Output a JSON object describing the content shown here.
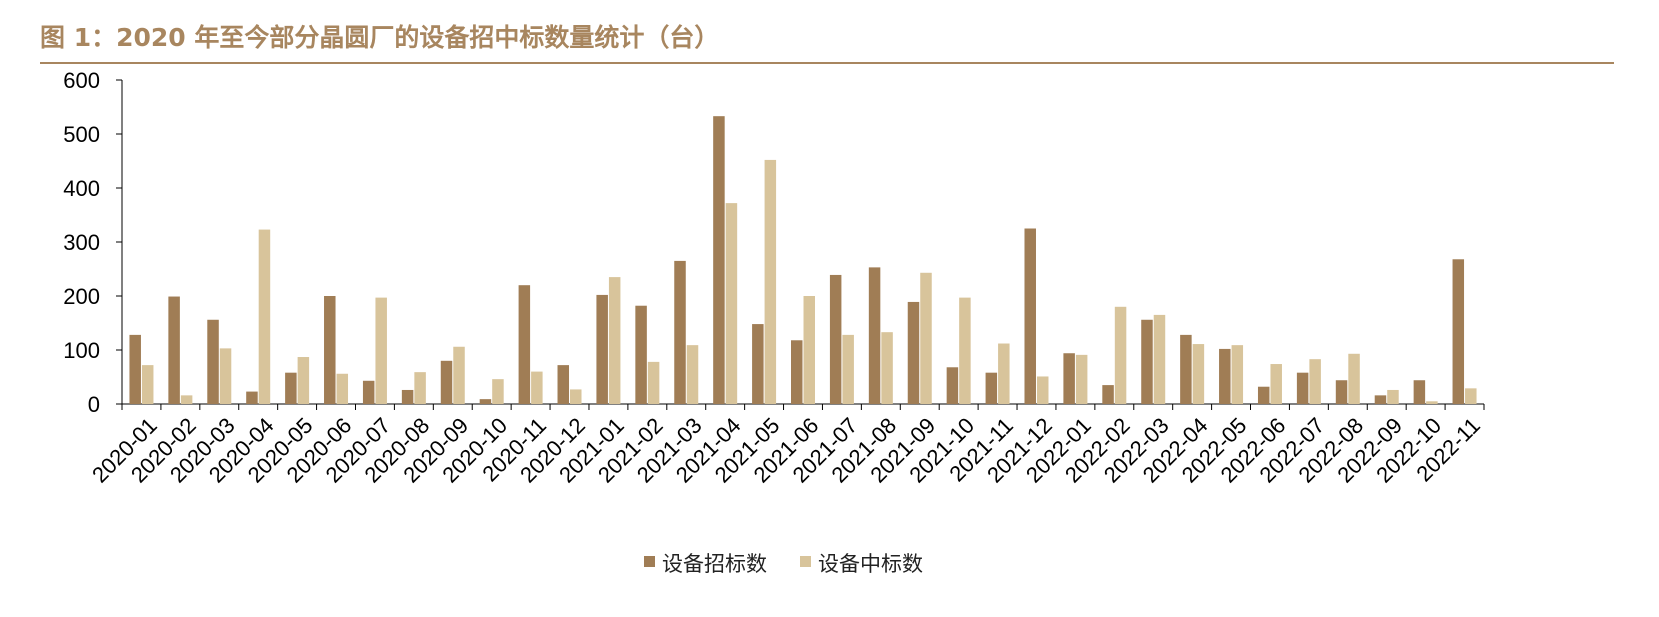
{
  "header": {
    "title": "图 1：2020 年至今部分晶圆厂的设备招中标数量统计（台）"
  },
  "colors": {
    "title": "#a8865f",
    "rule": "#a8865f",
    "series_bid": "#a07d55",
    "series_win": "#d8c49b",
    "axis": "#000000"
  },
  "chart_data": {
    "type": "bar",
    "title": "",
    "xlabel": "",
    "ylabel": "",
    "ylim": [
      0,
      600
    ],
    "yticks": [
      0,
      100,
      200,
      300,
      400,
      500,
      600
    ],
    "grid": false,
    "legend_position": "bottom-center",
    "categories": [
      "2020-01",
      "2020-02",
      "2020-03",
      "2020-04",
      "2020-05",
      "2020-06",
      "2020-07",
      "2020-08",
      "2020-09",
      "2020-10",
      "2020-11",
      "2020-12",
      "2021-01",
      "2021-02",
      "2021-03",
      "2021-04",
      "2021-05",
      "2021-06",
      "2021-07",
      "2021-08",
      "2021-09",
      "2021-10",
      "2021-11",
      "2021-12",
      "2022-01",
      "2022-02",
      "2022-03",
      "2022-04",
      "2022-05",
      "2022-06",
      "2022-07",
      "2022-08",
      "2022-09",
      "2022-10",
      "2022-11"
    ],
    "series": [
      {
        "name": "设备招标数",
        "values": [
          128,
          199,
          156,
          23,
          58,
          200,
          43,
          26,
          80,
          9,
          220,
          72,
          202,
          182,
          265,
          533,
          148,
          118,
          239,
          253,
          189,
          68,
          58,
          325,
          94,
          35,
          156,
          128,
          102,
          32,
          58,
          44,
          16,
          44,
          268
        ]
      },
      {
        "name": "设备中标数",
        "values": [
          72,
          16,
          103,
          323,
          87,
          56,
          197,
          59,
          106,
          46,
          60,
          27,
          235,
          78,
          109,
          372,
          452,
          200,
          128,
          133,
          243,
          197,
          112,
          51,
          91,
          180,
          165,
          111,
          109,
          74,
          83,
          93,
          26,
          5,
          29
        ]
      }
    ]
  }
}
